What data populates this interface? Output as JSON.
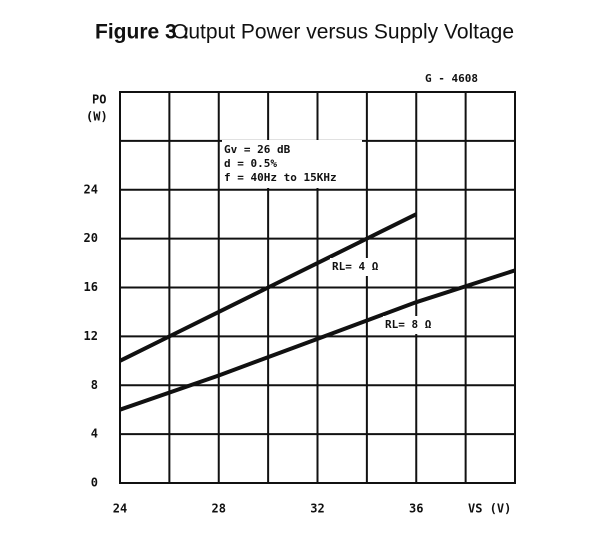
{
  "chart_data": {
    "type": "line",
    "title_prefix": "Figure 3 :",
    "title": "Output Power versus Supply Voltage",
    "code": "G - 4608",
    "y_label": "PO",
    "y_unit": "(W)",
    "x_label": "VS (V)",
    "annotations": [
      "Gv = 26 dB",
      "d = 0.5%",
      "f = 40Hz  to 15KHz"
    ],
    "series": [
      {
        "name": "RL= 4 Ω",
        "color": "#111111",
        "x": [
          24,
          26,
          28,
          30,
          32,
          34,
          36
        ],
        "values": [
          10,
          12,
          14,
          16,
          18,
          20,
          22
        ]
      },
      {
        "name": "RL= 8 Ω",
        "color": "#111111",
        "x": [
          24,
          28,
          32,
          36,
          40
        ],
        "values": [
          6,
          8.8,
          11.8,
          14.8,
          17.4
        ]
      }
    ],
    "xlim": [
      24,
      40
    ],
    "ylim": [
      0,
      32
    ],
    "xticks": [
      24,
      28,
      32,
      36
    ],
    "yticks": [
      0,
      4,
      8,
      12,
      16,
      20,
      24
    ],
    "x_unlabeled_grid": [
      26,
      30,
      34,
      38,
      40
    ],
    "y_unlabeled_grid": [
      28,
      32
    ],
    "grid": true
  }
}
